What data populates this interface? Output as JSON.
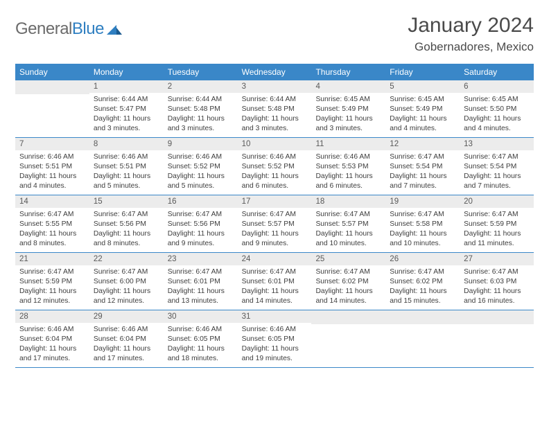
{
  "logo": {
    "part1": "General",
    "part2": "Blue"
  },
  "title": "January 2024",
  "location": "Gobernadores, Mexico",
  "colors": {
    "header_bg": "#3a87c8",
    "day_number_bg": "#ececec",
    "text": "#333333",
    "logo_gray": "#6b6b6b",
    "logo_blue": "#2f7fc1"
  },
  "dayNames": [
    "Sunday",
    "Monday",
    "Tuesday",
    "Wednesday",
    "Thursday",
    "Friday",
    "Saturday"
  ],
  "weeks": [
    [
      {
        "empty": true
      },
      {
        "n": "1",
        "sr": "6:44 AM",
        "ss": "5:47 PM",
        "dl": "11 hours and 3 minutes."
      },
      {
        "n": "2",
        "sr": "6:44 AM",
        "ss": "5:48 PM",
        "dl": "11 hours and 3 minutes."
      },
      {
        "n": "3",
        "sr": "6:44 AM",
        "ss": "5:48 PM",
        "dl": "11 hours and 3 minutes."
      },
      {
        "n": "4",
        "sr": "6:45 AM",
        "ss": "5:49 PM",
        "dl": "11 hours and 3 minutes."
      },
      {
        "n": "5",
        "sr": "6:45 AM",
        "ss": "5:49 PM",
        "dl": "11 hours and 4 minutes."
      },
      {
        "n": "6",
        "sr": "6:45 AM",
        "ss": "5:50 PM",
        "dl": "11 hours and 4 minutes."
      }
    ],
    [
      {
        "n": "7",
        "sr": "6:46 AM",
        "ss": "5:51 PM",
        "dl": "11 hours and 4 minutes."
      },
      {
        "n": "8",
        "sr": "6:46 AM",
        "ss": "5:51 PM",
        "dl": "11 hours and 5 minutes."
      },
      {
        "n": "9",
        "sr": "6:46 AM",
        "ss": "5:52 PM",
        "dl": "11 hours and 5 minutes."
      },
      {
        "n": "10",
        "sr": "6:46 AM",
        "ss": "5:52 PM",
        "dl": "11 hours and 6 minutes."
      },
      {
        "n": "11",
        "sr": "6:46 AM",
        "ss": "5:53 PM",
        "dl": "11 hours and 6 minutes."
      },
      {
        "n": "12",
        "sr": "6:47 AM",
        "ss": "5:54 PM",
        "dl": "11 hours and 7 minutes."
      },
      {
        "n": "13",
        "sr": "6:47 AM",
        "ss": "5:54 PM",
        "dl": "11 hours and 7 minutes."
      }
    ],
    [
      {
        "n": "14",
        "sr": "6:47 AM",
        "ss": "5:55 PM",
        "dl": "11 hours and 8 minutes."
      },
      {
        "n": "15",
        "sr": "6:47 AM",
        "ss": "5:56 PM",
        "dl": "11 hours and 8 minutes."
      },
      {
        "n": "16",
        "sr": "6:47 AM",
        "ss": "5:56 PM",
        "dl": "11 hours and 9 minutes."
      },
      {
        "n": "17",
        "sr": "6:47 AM",
        "ss": "5:57 PM",
        "dl": "11 hours and 9 minutes."
      },
      {
        "n": "18",
        "sr": "6:47 AM",
        "ss": "5:57 PM",
        "dl": "11 hours and 10 minutes."
      },
      {
        "n": "19",
        "sr": "6:47 AM",
        "ss": "5:58 PM",
        "dl": "11 hours and 10 minutes."
      },
      {
        "n": "20",
        "sr": "6:47 AM",
        "ss": "5:59 PM",
        "dl": "11 hours and 11 minutes."
      }
    ],
    [
      {
        "n": "21",
        "sr": "6:47 AM",
        "ss": "5:59 PM",
        "dl": "11 hours and 12 minutes."
      },
      {
        "n": "22",
        "sr": "6:47 AM",
        "ss": "6:00 PM",
        "dl": "11 hours and 12 minutes."
      },
      {
        "n": "23",
        "sr": "6:47 AM",
        "ss": "6:01 PM",
        "dl": "11 hours and 13 minutes."
      },
      {
        "n": "24",
        "sr": "6:47 AM",
        "ss": "6:01 PM",
        "dl": "11 hours and 14 minutes."
      },
      {
        "n": "25",
        "sr": "6:47 AM",
        "ss": "6:02 PM",
        "dl": "11 hours and 14 minutes."
      },
      {
        "n": "26",
        "sr": "6:47 AM",
        "ss": "6:02 PM",
        "dl": "11 hours and 15 minutes."
      },
      {
        "n": "27",
        "sr": "6:47 AM",
        "ss": "6:03 PM",
        "dl": "11 hours and 16 minutes."
      }
    ],
    [
      {
        "n": "28",
        "sr": "6:46 AM",
        "ss": "6:04 PM",
        "dl": "11 hours and 17 minutes."
      },
      {
        "n": "29",
        "sr": "6:46 AM",
        "ss": "6:04 PM",
        "dl": "11 hours and 17 minutes."
      },
      {
        "n": "30",
        "sr": "6:46 AM",
        "ss": "6:05 PM",
        "dl": "11 hours and 18 minutes."
      },
      {
        "n": "31",
        "sr": "6:46 AM",
        "ss": "6:05 PM",
        "dl": "11 hours and 19 minutes."
      },
      {
        "empty": true
      },
      {
        "empty": true
      },
      {
        "empty": true
      }
    ]
  ],
  "labels": {
    "sunrise": "Sunrise:",
    "sunset": "Sunset:",
    "daylight": "Daylight:"
  }
}
